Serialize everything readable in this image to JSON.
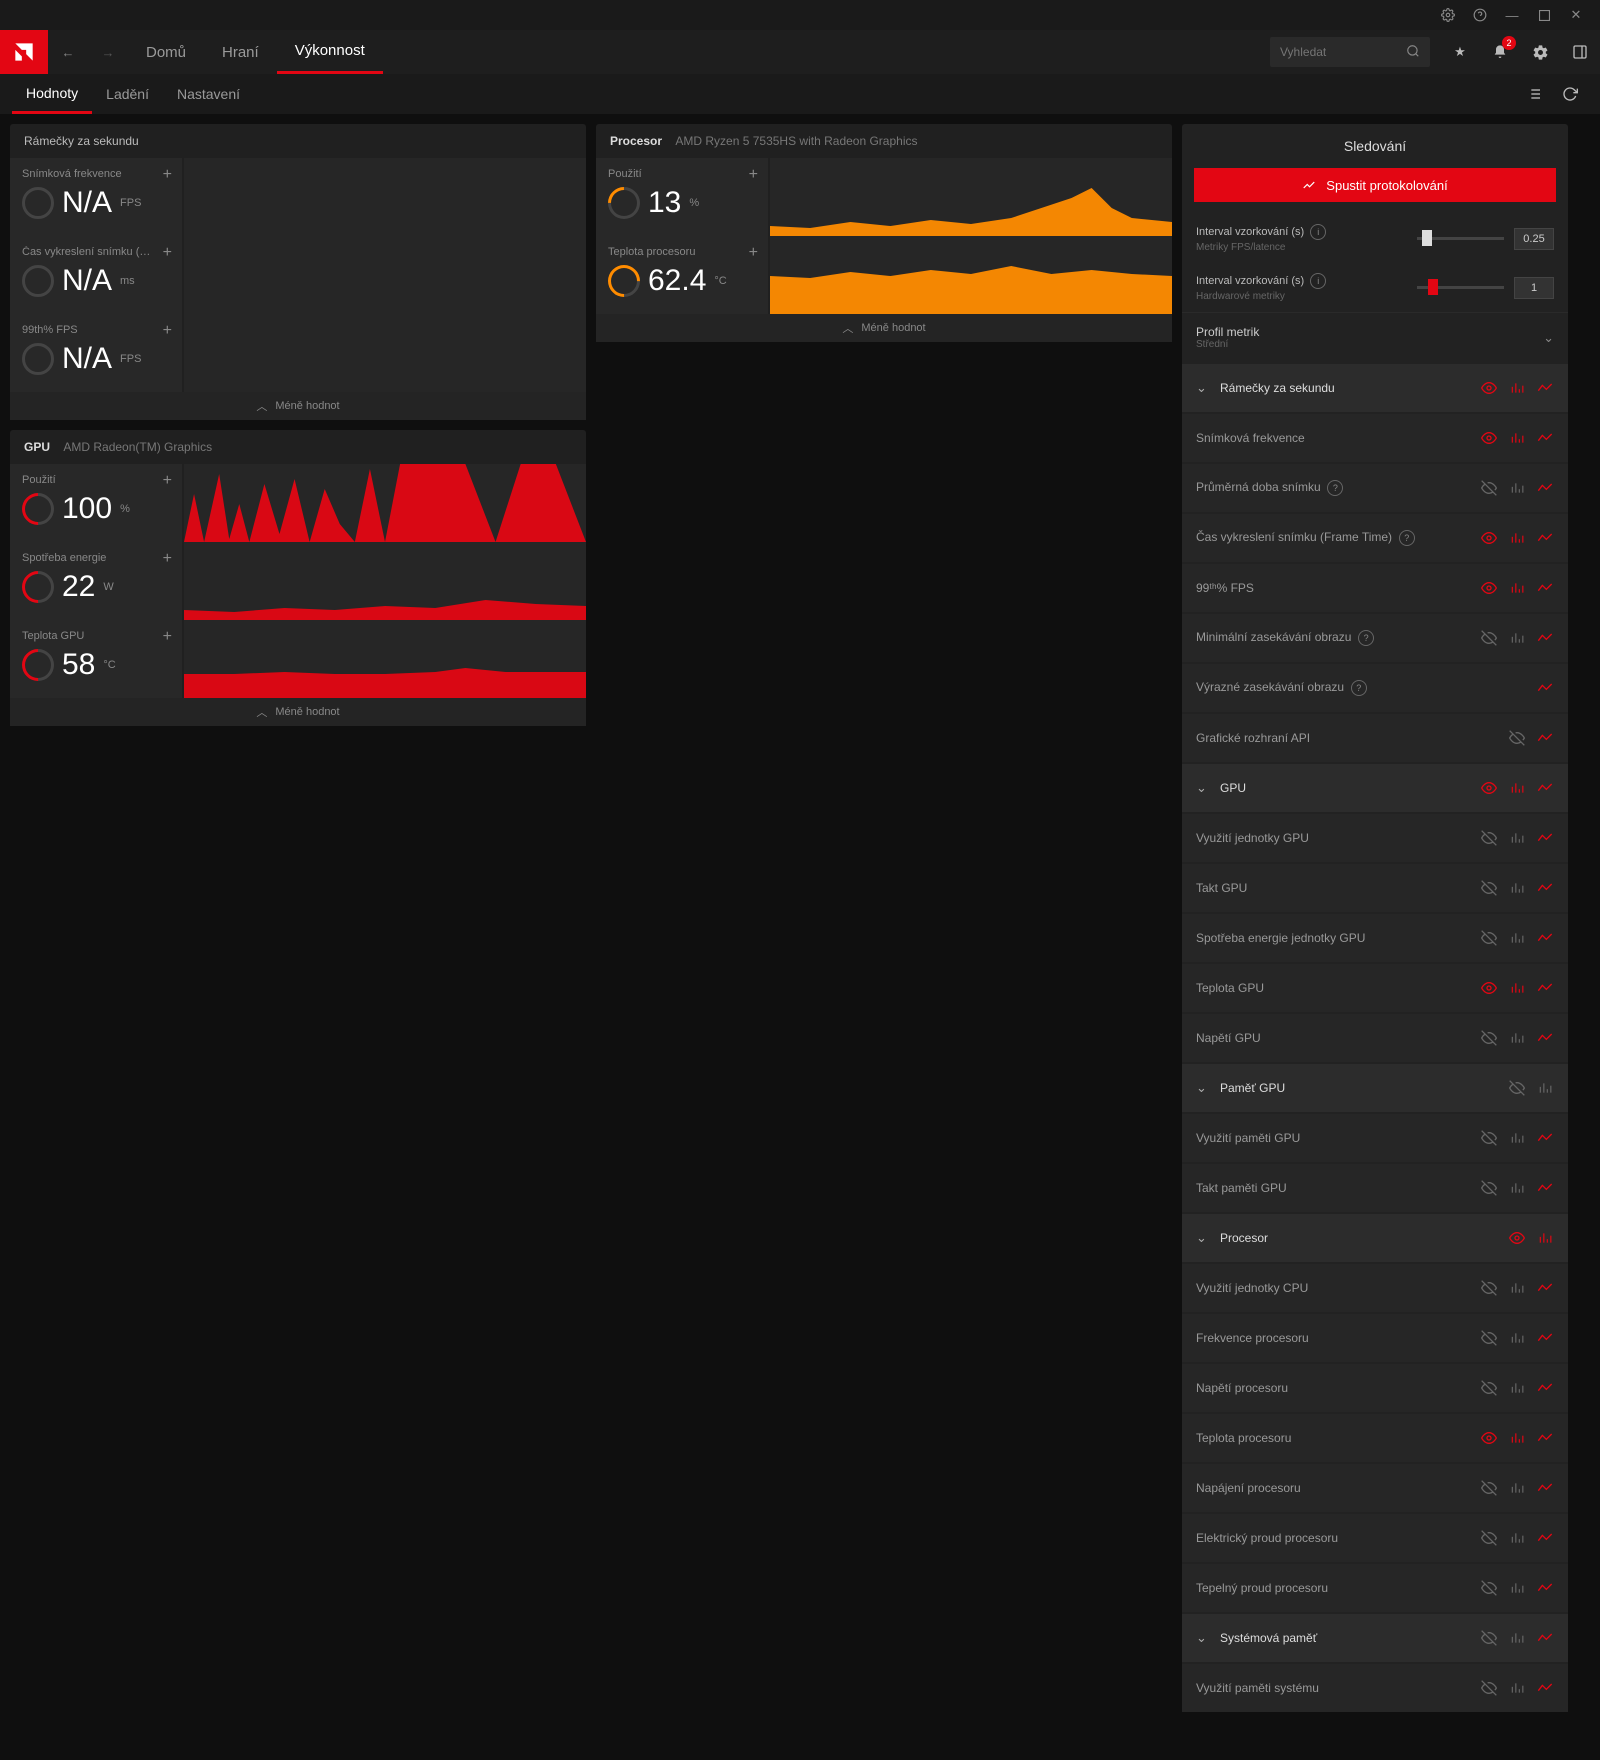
{
  "titlebar_icons": [
    "window-preferences",
    "help",
    "minimize",
    "maximize",
    "close"
  ],
  "topnav": {
    "items": [
      "Domů",
      "Hraní",
      "Výkonnost"
    ],
    "active_index": 2,
    "search_placeholder": "Vyhledat",
    "bell_badge": "2"
  },
  "subnav": {
    "items": [
      "Hodnoty",
      "Ladění",
      "Nastavení"
    ],
    "active_index": 0
  },
  "colors": {
    "accent": "#e30613",
    "orange": "#ff8c00",
    "red": "#e30613",
    "bg_panel": "#202020"
  },
  "frames_panel": {
    "title": "Rámečky za sekundu",
    "metrics": [
      {
        "label": "Snímková frekvence",
        "value": "N/A",
        "unit": "FPS",
        "gauge": "gray"
      },
      {
        "label": "Čas vykreslení snímku (Frame Ti…",
        "value": "N/A",
        "unit": "ms",
        "gauge": "gray"
      },
      {
        "label": "99th% FPS",
        "value": "N/A",
        "unit": "FPS",
        "gauge": "gray"
      }
    ],
    "footer": "Méně hodnot"
  },
  "gpu_panel": {
    "title": "GPU",
    "subtitle": "AMD Radeon(TM) Graphics",
    "metrics": [
      {
        "label": "Použití",
        "value": "100",
        "unit": "%",
        "gauge": "red",
        "graph": "spiky"
      },
      {
        "label": "Spotřeba energie",
        "value": "22",
        "unit": "W",
        "gauge": "red",
        "graph": "low"
      },
      {
        "label": "Teplota GPU",
        "value": "58",
        "unit": "°C",
        "gauge": "red",
        "graph": "flat"
      }
    ],
    "footer": "Méně hodnot"
  },
  "cpu_panel": {
    "title": "Procesor",
    "subtitle": "AMD Ryzen 5 7535HS with Radeon Graphics",
    "metrics": [
      {
        "label": "Použití",
        "value": "13",
        "unit": "%",
        "gauge": "orange",
        "graph": "cpu_use"
      },
      {
        "label": "Teplota procesoru",
        "value": "62.4",
        "unit": "°C",
        "gauge": "orange2",
        "graph": "cpu_temp"
      }
    ],
    "footer": "Méně hodnot"
  },
  "side": {
    "title": "Sledování",
    "log_button": "Spustit protokolování",
    "slider1": {
      "label": "Interval vzorkování (s)",
      "sub": "Metriky FPS/latence",
      "value": "0.25",
      "thumb_pct": 5
    },
    "slider2": {
      "label": "Interval vzorkování (s)",
      "sub": "Hardwarové metriky",
      "value": "1",
      "thumb_pct": 12
    },
    "profile": {
      "label": "Profil metrik",
      "value": "Střední"
    },
    "groups": [
      {
        "header": "Rámečky za sekundu",
        "eye": "red",
        "chart": "red",
        "trend": "red",
        "rows": [
          {
            "label": "Snímková frekvence",
            "eye": "red",
            "chart": "red",
            "trend": "red",
            "info": false
          },
          {
            "label": "Průměrná doba snímku",
            "eye": "dim",
            "chart": "dim",
            "trend": "red",
            "info": true
          },
          {
            "label": "Čas vykreslení snímku (Frame Time)",
            "eye": "red",
            "chart": "red",
            "trend": "red",
            "info": true
          },
          {
            "label": "99ᵗʰ% FPS",
            "eye": "red",
            "chart": "red",
            "trend": "red",
            "info": false
          },
          {
            "label": "Minimální zasekávání obrazu",
            "eye": "dim",
            "chart": "dim",
            "trend": "red",
            "info": true
          },
          {
            "label": "Výrazné zasekávání obrazu",
            "eye": "none",
            "chart": "none",
            "trend": "red",
            "info": true
          },
          {
            "label": "Grafické rozhraní API",
            "eye": "dim",
            "chart": "none",
            "trend": "red",
            "info": false
          }
        ]
      },
      {
        "header": "GPU",
        "eye": "red",
        "chart": "red",
        "trend": "red",
        "rows": [
          {
            "label": "Využití jednotky GPU",
            "eye": "dim",
            "chart": "dim",
            "trend": "red"
          },
          {
            "label": "Takt GPU",
            "eye": "dim",
            "chart": "dim",
            "trend": "red"
          },
          {
            "label": "Spotřeba energie jednotky GPU",
            "eye": "dim",
            "chart": "dim",
            "trend": "red"
          },
          {
            "label": "Teplota GPU",
            "eye": "red",
            "chart": "red",
            "trend": "red"
          },
          {
            "label": "Napětí GPU",
            "eye": "dim",
            "chart": "dim",
            "trend": "red"
          }
        ]
      },
      {
        "header": "Paměť GPU",
        "eye": "dim",
        "chart": "dim",
        "trend": "none",
        "rows": [
          {
            "label": "Využití paměti GPU",
            "eye": "dim",
            "chart": "dim",
            "trend": "red"
          },
          {
            "label": "Takt paměti GPU",
            "eye": "dim",
            "chart": "dim",
            "trend": "red"
          }
        ]
      },
      {
        "header": "Procesor",
        "eye": "red",
        "chart": "red",
        "trend": "none",
        "rows": [
          {
            "label": "Využití jednotky CPU",
            "eye": "dim",
            "chart": "dim",
            "trend": "red"
          },
          {
            "label": "Frekvence procesoru",
            "eye": "dim",
            "chart": "dim",
            "trend": "red"
          },
          {
            "label": "Napětí procesoru",
            "eye": "dim",
            "chart": "dim",
            "trend": "red"
          },
          {
            "label": "Teplota procesoru",
            "eye": "red",
            "chart": "red",
            "trend": "red"
          },
          {
            "label": "Napájení procesoru",
            "eye": "dim",
            "chart": "dim",
            "trend": "red"
          },
          {
            "label": "Elektrický proud procesoru",
            "eye": "dim",
            "chart": "dim",
            "trend": "red"
          },
          {
            "label": "Tepelný proud procesoru",
            "eye": "dim",
            "chart": "dim",
            "trend": "red"
          }
        ]
      },
      {
        "header": "Systémová paměť",
        "eye": "dim",
        "chart": "dim",
        "trend": "red",
        "rows": [
          {
            "label": "Využití paměti systému",
            "eye": "dim",
            "chart": "dim",
            "trend": "red"
          }
        ]
      }
    ]
  }
}
